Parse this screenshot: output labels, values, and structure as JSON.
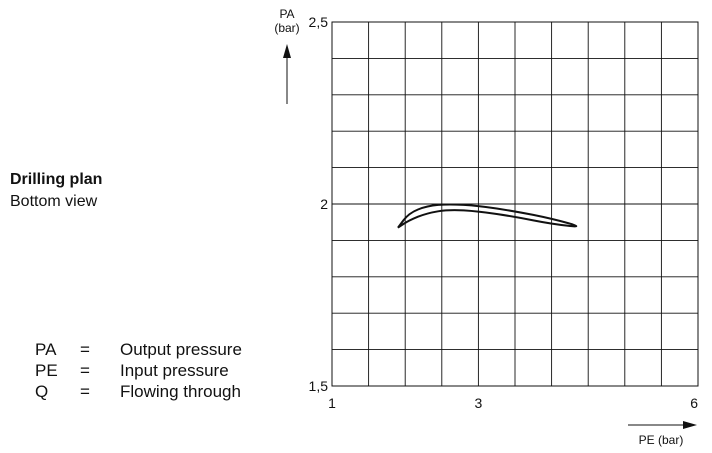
{
  "side_panel": {
    "title": "Drilling plan",
    "subtitle": "Bottom view"
  },
  "legend": [
    {
      "key": "PA",
      "eq": "=",
      "desc": "Output pressure"
    },
    {
      "key": "PE",
      "eq": "=",
      "desc": "Input pressure"
    },
    {
      "key": "Q",
      "eq": "=",
      "desc": "Flowing through"
    }
  ],
  "chart_data": {
    "type": "line",
    "title": "",
    "ylabel": "PA\n(bar)",
    "xlabel": "PE (bar)",
    "xlim": [
      1,
      6
    ],
    "ylim": [
      1.5,
      2.5
    ],
    "x_ticks": [
      "1",
      "3",
      "6"
    ],
    "x_tick_values": [
      1,
      3,
      6
    ],
    "y_ticks": [
      "2,5",
      "2",
      "1,5"
    ],
    "y_tick_values": [
      2.5,
      2.0,
      1.5
    ],
    "grid": true,
    "series": [
      {
        "values": [
          {
            "x": 1.9,
            "y": 1.935
          },
          {
            "x": 2.05,
            "y": 1.975
          },
          {
            "x": 2.3,
            "y": 1.995
          },
          {
            "x": 2.6,
            "y": 2.0
          },
          {
            "x": 3.0,
            "y": 1.995
          },
          {
            "x": 3.5,
            "y": 1.98
          },
          {
            "x": 4.0,
            "y": 1.96
          },
          {
            "x": 4.45,
            "y": 1.935
          },
          {
            "x": 4.0,
            "y": 1.945
          },
          {
            "x": 3.5,
            "y": 1.965
          },
          {
            "x": 3.0,
            "y": 1.98
          },
          {
            "x": 2.6,
            "y": 1.985
          },
          {
            "x": 2.3,
            "y": 1.975
          },
          {
            "x": 2.05,
            "y": 1.955
          },
          {
            "x": 1.9,
            "y": 1.935
          }
        ]
      }
    ]
  }
}
